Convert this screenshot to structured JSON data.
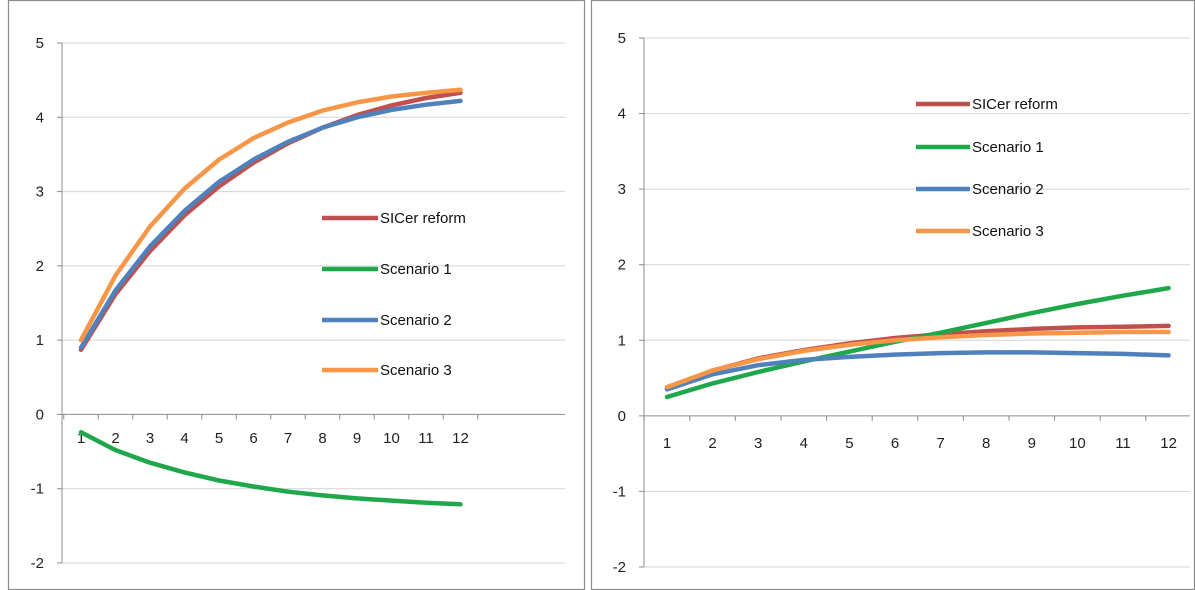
{
  "chart_data": [
    {
      "type": "line",
      "title": "",
      "xlabel": "",
      "ylabel": "",
      "categories": [
        "1",
        "2",
        "3",
        "4",
        "5",
        "6",
        "7",
        "8",
        "9",
        "10",
        "11",
        "12"
      ],
      "ylim": [
        -2,
        5
      ],
      "yticks": [
        "-2",
        "-1",
        "0",
        "1",
        "2",
        "3",
        "4",
        "5"
      ],
      "grid": true,
      "legend_position": "center-right",
      "series": [
        {
          "name": "SICer reform",
          "color": "#C0504D",
          "values": [
            0.87,
            1.62,
            2.2,
            2.68,
            3.07,
            3.39,
            3.65,
            3.86,
            4.03,
            4.16,
            4.26,
            4.33
          ]
        },
        {
          "name": "Scenario 1",
          "color": "#1FA84B",
          "values": [
            -0.24,
            -0.48,
            -0.65,
            -0.78,
            -0.89,
            -0.97,
            -1.04,
            -1.09,
            -1.13,
            -1.16,
            -1.19,
            -1.21
          ]
        },
        {
          "name": "Scenario 2",
          "color": "#4F81BD",
          "values": [
            0.9,
            1.67,
            2.26,
            2.74,
            3.13,
            3.43,
            3.67,
            3.86,
            4.0,
            4.1,
            4.17,
            4.22
          ]
        },
        {
          "name": "Scenario 3",
          "color": "#F79646",
          "values": [
            1.0,
            1.87,
            2.53,
            3.04,
            3.43,
            3.72,
            3.93,
            4.09,
            4.2,
            4.28,
            4.33,
            4.37
          ]
        }
      ]
    },
    {
      "type": "line",
      "title": "",
      "xlabel": "",
      "ylabel": "",
      "categories": [
        "1",
        "2",
        "3",
        "4",
        "5",
        "6",
        "7",
        "8",
        "9",
        "10",
        "11",
        "12"
      ],
      "ylim": [
        -2,
        5
      ],
      "yticks": [
        "-2",
        "-1",
        "0",
        "1",
        "2",
        "3",
        "4",
        "5"
      ],
      "grid": true,
      "legend_position": "top-center",
      "series": [
        {
          "name": "SICer reform",
          "color": "#C0504D",
          "values": [
            0.37,
            0.6,
            0.76,
            0.87,
            0.96,
            1.03,
            1.08,
            1.12,
            1.15,
            1.17,
            1.18,
            1.19
          ]
        },
        {
          "name": "Scenario 1",
          "color": "#1FA84B",
          "values": [
            0.25,
            0.43,
            0.58,
            0.72,
            0.85,
            0.98,
            1.1,
            1.23,
            1.36,
            1.48,
            1.59,
            1.69
          ]
        },
        {
          "name": "Scenario 2",
          "color": "#4F81BD",
          "values": [
            0.35,
            0.55,
            0.67,
            0.74,
            0.78,
            0.81,
            0.83,
            0.84,
            0.84,
            0.83,
            0.82,
            0.8
          ]
        },
        {
          "name": "Scenario 3",
          "color": "#F79646",
          "values": [
            0.38,
            0.6,
            0.75,
            0.86,
            0.94,
            1.0,
            1.04,
            1.07,
            1.09,
            1.1,
            1.11,
            1.11
          ]
        }
      ]
    }
  ]
}
